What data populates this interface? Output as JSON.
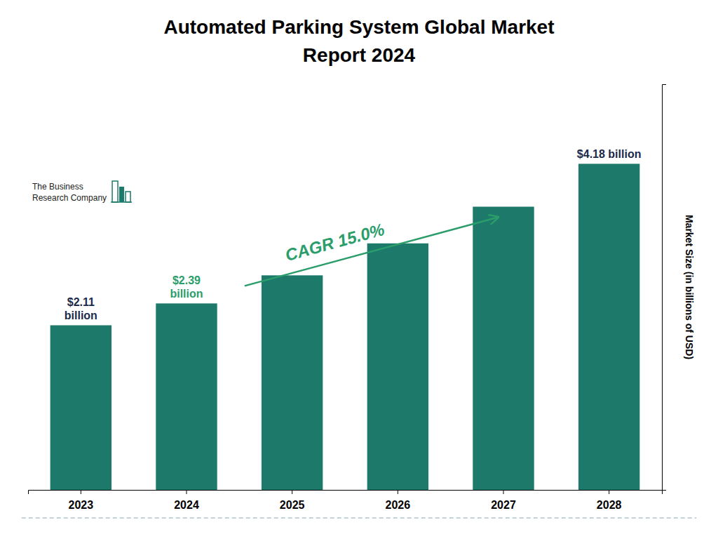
{
  "chart_data": {
    "type": "bar",
    "title": "Automated Parking System Global Market",
    "subtitle": "Report 2024",
    "categories": [
      "2023",
      "2024",
      "2025",
      "2026",
      "2027",
      "2028"
    ],
    "values": [
      2.11,
      2.39,
      2.75,
      3.16,
      3.63,
      4.18
    ],
    "color": "#1d7a6b",
    "ylabel": "Market Size (in billions of USD)",
    "ylim": [
      0,
      5.2
    ],
    "tick_labels": "x",
    "grid": false,
    "annotations": [
      {
        "text": "$2.11\nbillion",
        "x": "2023",
        "y": 2.11,
        "color": "#1a2a4a"
      },
      {
        "text": "$2.39\nbillion",
        "x": "2024",
        "y": 2.39,
        "color": "#2a9d6b"
      },
      {
        "text": "$4.18 billion",
        "x": "2028",
        "y": 4.18,
        "color": "#1a2a4a"
      },
      {
        "text": "CAGR 15.0%",
        "arrow_from": "2024",
        "arrow_to": "2027",
        "color": "#2a9d6b"
      },
      {
        "text": "The Business\nResearch Company",
        "color": "#222222"
      }
    ]
  }
}
